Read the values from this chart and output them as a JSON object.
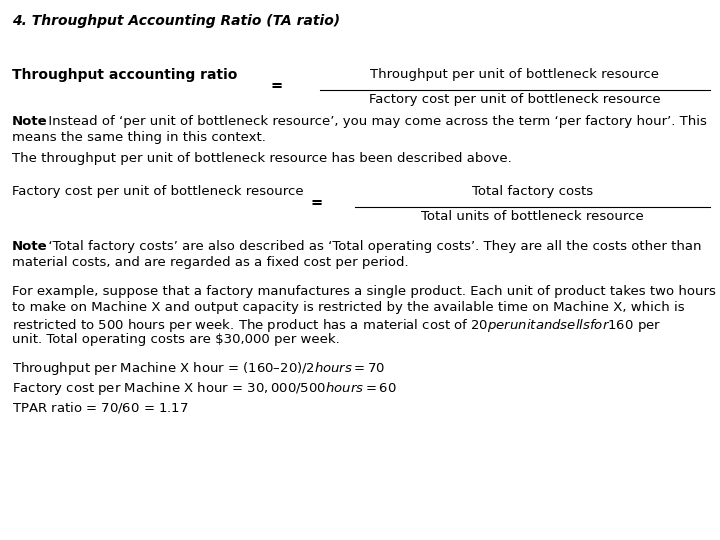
{
  "title": "4. Throughput Accounting Ratio (TA ratio)",
  "bg_color": "#ffffff",
  "text_color": "#000000",
  "formula1_label": "Throughput accounting ratio",
  "formula1_numerator": "Throughput per unit of bottleneck resource",
  "formula1_denominator": "Factory cost per unit of bottleneck resource",
  "note1_line1": ". Instead of ‘per unit of bottleneck resource’, you may come across the term ‘per factory hour’. This",
  "note1_line2": "means the same thing in this context.",
  "line1": "The throughput per unit of bottleneck resource has been described above.",
  "formula2_label": "Factory cost per unit of bottleneck resource",
  "formula2_numerator": "Total factory costs",
  "formula2_denominator": "Total units of bottleneck resource",
  "note2_line1": ". ‘Total factory costs’ are also described as ‘Total operating costs’. They are all the costs other than",
  "note2_line2": "material costs, and are regarded as a fixed cost per period.",
  "para_lines": [
    "For example, suppose that a factory manufactures a single product. Each unit of product takes two hours",
    "to make on Machine X and output capacity is restricted by the available time on Machine X, which is",
    "restricted to 500 hours per week. The product has a material cost of $20 per unit and sells for $160 per",
    "unit. Total operating costs are $30,000 per week."
  ],
  "calc1": "Throughput per Machine X hour = $(160 – 20)/2 hours = $70",
  "calc2": "Factory cost per Machine X hour = $30,000/500 hours = $60",
  "calc3": "TPAR ratio = $70/$60 = 1.17",
  "fontsize": 9.5,
  "title_fontsize": 10.0
}
